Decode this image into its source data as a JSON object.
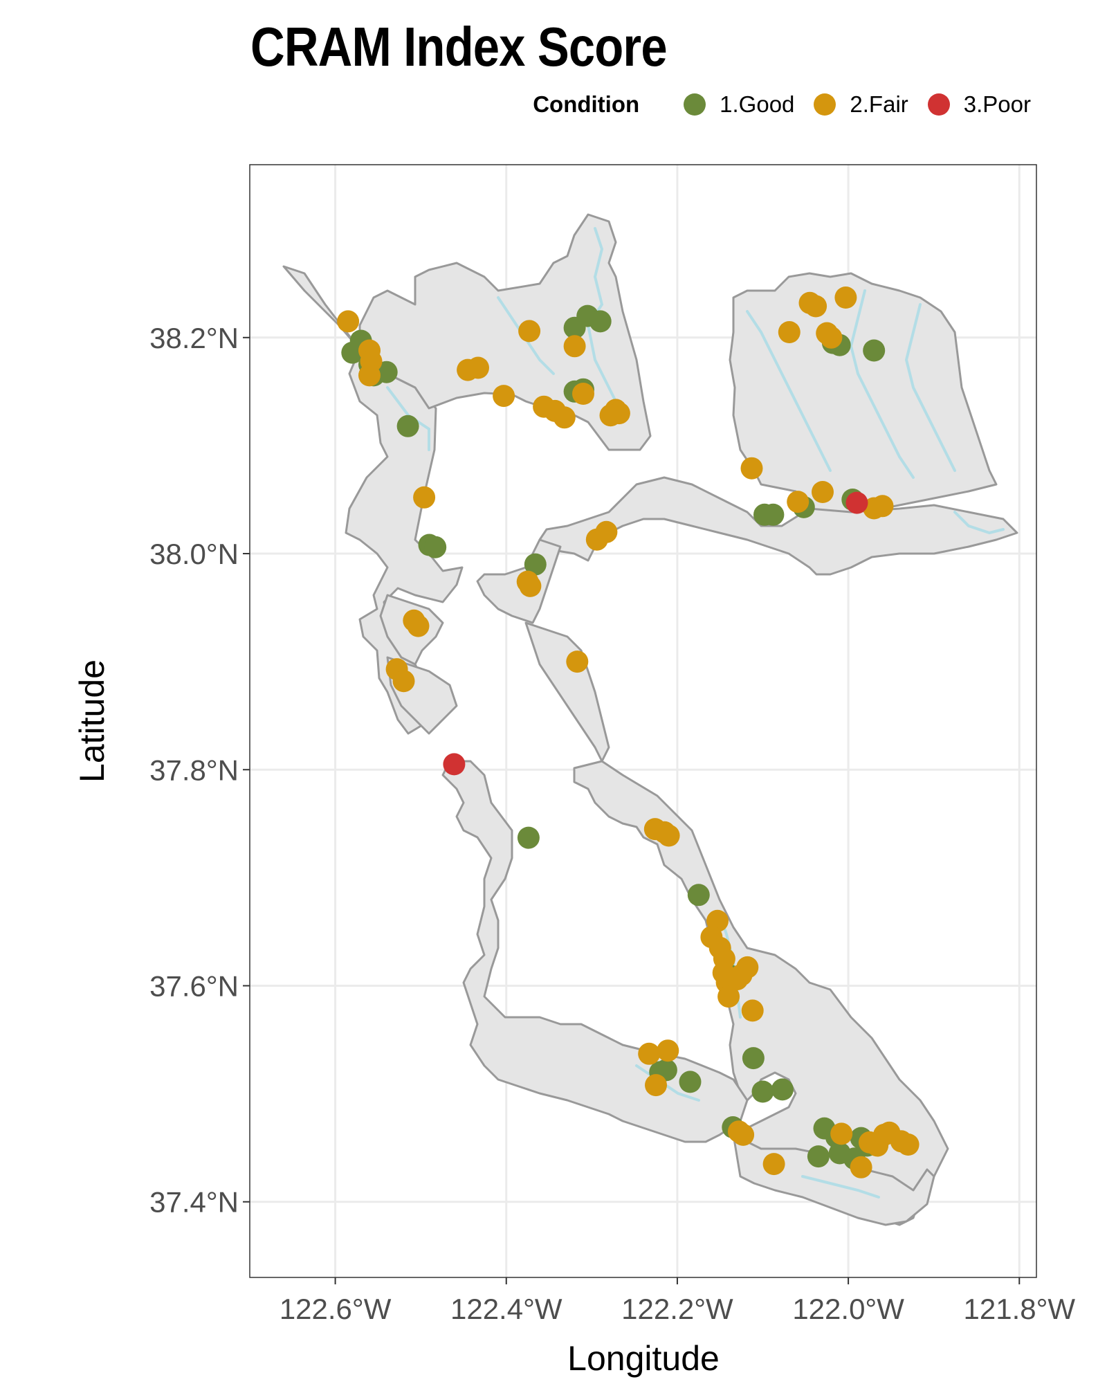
{
  "title": "CRAM Index Score",
  "legend": {
    "title": "Condition",
    "items": [
      {
        "label": "1.Good",
        "color": "#6b8a3a"
      },
      {
        "label": "2.Fair",
        "color": "#d4960e"
      },
      {
        "label": "3.Poor",
        "color": "#d03232"
      }
    ]
  },
  "colors": {
    "land_fill": "#e5e5e5",
    "land_stroke": "#999999",
    "water": "#b3dde6",
    "grid": "#ebebeb"
  },
  "chart_data": {
    "type": "scatter",
    "title": "CRAM Index Score",
    "xlabel": "Longitude",
    "ylabel": "Latitude",
    "xlim": [
      -122.7,
      -121.78
    ],
    "ylim": [
      37.33,
      38.36
    ],
    "xticks": [
      -122.6,
      -122.4,
      -122.2,
      -122.0,
      -121.8
    ],
    "xtick_labels": [
      "122.6°W",
      "122.4°W",
      "122.2°W",
      "122.0°W",
      "121.8°W"
    ],
    "yticks": [
      37.4,
      37.6,
      37.8,
      38.0,
      38.2
    ],
    "ytick_labels": [
      "37.4°N",
      "37.6°N",
      "37.8°N",
      "38.0°N",
      "38.2°N"
    ],
    "grid": true,
    "legend_position": "top-right",
    "series": [
      {
        "name": "1.Good",
        "color": "#6b8a3a",
        "points": [
          [
            -122.57,
            38.197
          ],
          [
            -122.58,
            38.186
          ],
          [
            -122.56,
            38.175
          ],
          [
            -122.555,
            38.165
          ],
          [
            -122.54,
            38.168
          ],
          [
            -122.515,
            38.118
          ],
          [
            -122.49,
            38.008
          ],
          [
            -122.483,
            38.006
          ],
          [
            -122.366,
            37.99
          ],
          [
            -122.32,
            38.209
          ],
          [
            -122.305,
            38.22
          ],
          [
            -122.29,
            38.215
          ],
          [
            -122.32,
            38.15
          ],
          [
            -122.31,
            38.152
          ],
          [
            -122.018,
            38.195
          ],
          [
            -122.01,
            38.193
          ],
          [
            -121.97,
            38.188
          ],
          [
            -122.098,
            38.036
          ],
          [
            -122.088,
            38.036
          ],
          [
            -122.052,
            38.043
          ],
          [
            -121.995,
            38.05
          ],
          [
            -122.374,
            37.737
          ],
          [
            -122.175,
            37.684
          ],
          [
            -122.14,
            37.61
          ],
          [
            -122.22,
            37.52
          ],
          [
            -122.213,
            37.522
          ],
          [
            -122.185,
            37.511
          ],
          [
            -122.111,
            37.533
          ],
          [
            -122.1,
            37.502
          ],
          [
            -122.077,
            37.504
          ],
          [
            -122.135,
            37.469
          ],
          [
            -122.028,
            37.468
          ],
          [
            -122.014,
            37.46
          ],
          [
            -122.035,
            37.442
          ],
          [
            -122.01,
            37.445
          ],
          [
            -121.985,
            37.459
          ],
          [
            -121.993,
            37.44
          ],
          [
            -121.978,
            37.452
          ]
        ]
      },
      {
        "name": "2.Fair",
        "color": "#d4960e",
        "points": [
          [
            -122.585,
            38.215
          ],
          [
            -122.56,
            38.188
          ],
          [
            -122.558,
            38.178
          ],
          [
            -122.56,
            38.165
          ],
          [
            -122.445,
            38.17
          ],
          [
            -122.433,
            38.172
          ],
          [
            -122.403,
            38.146
          ],
          [
            -122.373,
            38.206
          ],
          [
            -122.356,
            38.136
          ],
          [
            -122.343,
            38.132
          ],
          [
            -122.332,
            38.126
          ],
          [
            -122.32,
            38.192
          ],
          [
            -122.31,
            38.148
          ],
          [
            -122.272,
            38.133
          ],
          [
            -122.268,
            38.13
          ],
          [
            -122.278,
            38.128
          ],
          [
            -122.496,
            38.052
          ],
          [
            -122.294,
            38.013
          ],
          [
            -122.283,
            38.02
          ],
          [
            -122.375,
            37.974
          ],
          [
            -122.372,
            37.97
          ],
          [
            -122.317,
            37.9
          ],
          [
            -122.508,
            37.938
          ],
          [
            -122.503,
            37.933
          ],
          [
            -122.528,
            37.893
          ],
          [
            -122.52,
            37.882
          ],
          [
            -122.045,
            38.232
          ],
          [
            -122.038,
            38.229
          ],
          [
            -122.003,
            38.237
          ],
          [
            -122.069,
            38.205
          ],
          [
            -122.025,
            38.204
          ],
          [
            -122.02,
            38.2
          ],
          [
            -122.113,
            38.079
          ],
          [
            -122.059,
            38.048
          ],
          [
            -122.03,
            38.057
          ],
          [
            -121.97,
            38.042
          ],
          [
            -121.96,
            38.044
          ],
          [
            -122.226,
            37.745
          ],
          [
            -122.215,
            37.742
          ],
          [
            -122.21,
            37.739
          ],
          [
            -122.153,
            37.66
          ],
          [
            -122.16,
            37.645
          ],
          [
            -122.15,
            37.635
          ],
          [
            -122.145,
            37.625
          ],
          [
            -122.146,
            37.612
          ],
          [
            -122.142,
            37.603
          ],
          [
            -122.14,
            37.59
          ],
          [
            -122.13,
            37.606
          ],
          [
            -122.125,
            37.61
          ],
          [
            -122.118,
            37.617
          ],
          [
            -122.112,
            37.577
          ],
          [
            -122.233,
            37.537
          ],
          [
            -122.211,
            37.54
          ],
          [
            -122.225,
            37.508
          ],
          [
            -122.128,
            37.465
          ],
          [
            -122.123,
            37.462
          ],
          [
            -122.087,
            37.435
          ],
          [
            -122.008,
            37.463
          ],
          [
            -121.985,
            37.432
          ],
          [
            -121.975,
            37.455
          ],
          [
            -121.966,
            37.452
          ],
          [
            -121.958,
            37.462
          ],
          [
            -121.952,
            37.464
          ],
          [
            -121.938,
            37.456
          ],
          [
            -121.93,
            37.453
          ]
        ]
      },
      {
        "name": "3.Poor",
        "color": "#d03232",
        "points": [
          [
            -122.461,
            37.805
          ],
          [
            -121.99,
            38.047
          ]
        ]
      }
    ]
  }
}
